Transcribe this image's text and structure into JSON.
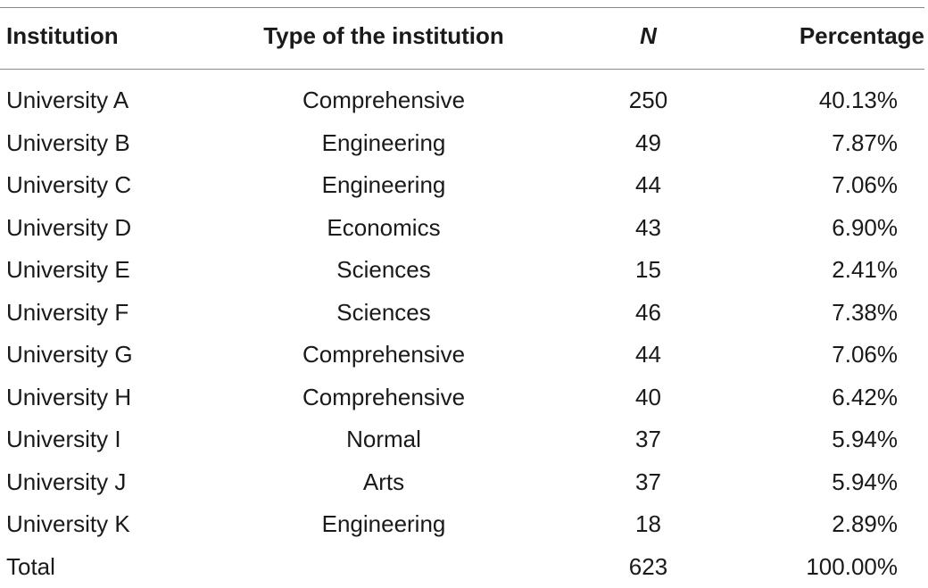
{
  "table": {
    "headers": [
      "Institution",
      "Type of the institution",
      "N",
      "Percentage"
    ],
    "rows": [
      [
        "University A",
        "Comprehensive",
        "250",
        "40.13%"
      ],
      [
        "University B",
        "Engineering",
        "49",
        "7.87%"
      ],
      [
        "University C",
        "Engineering",
        "44",
        "7.06%"
      ],
      [
        "University D",
        "Economics",
        "43",
        "6.90%"
      ],
      [
        "University E",
        "Sciences",
        "15",
        "2.41%"
      ],
      [
        "University F",
        "Sciences",
        "46",
        "7.38%"
      ],
      [
        "University G",
        "Comprehensive",
        "44",
        "7.06%"
      ],
      [
        "University H",
        "Comprehensive",
        "40",
        "6.42%"
      ],
      [
        "University I",
        "Normal",
        "37",
        "5.94%"
      ],
      [
        "University J",
        "Arts",
        "37",
        "5.94%"
      ],
      [
        "University K",
        "Engineering",
        "18",
        "2.89%"
      ],
      [
        "Total",
        "",
        "623",
        "100.00%"
      ]
    ]
  }
}
